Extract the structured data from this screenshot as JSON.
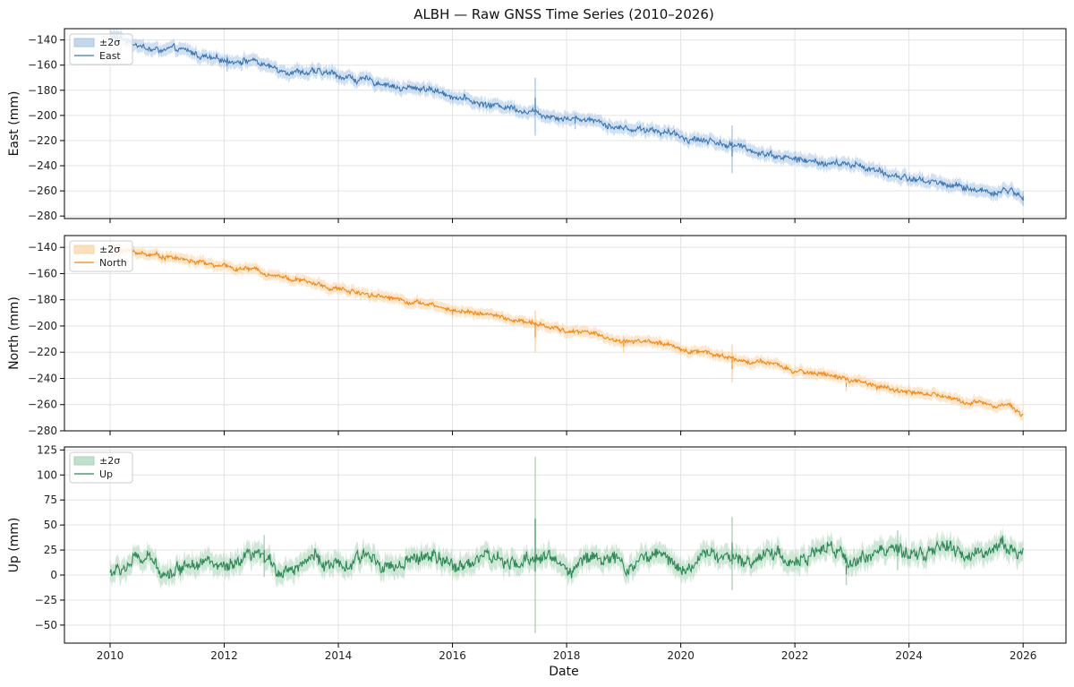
{
  "chart_data": {
    "type": "line",
    "title": "ALBH — Raw GNSS Time Series (2010–2026)",
    "xlabel": "Date",
    "xlim": [
      2009.2,
      2026.75
    ],
    "xticks": [
      "2010",
      "2012",
      "2014",
      "2016",
      "2018",
      "2020",
      "2022",
      "2024",
      "2026"
    ],
    "xtick_values": [
      2010,
      2012,
      2014,
      2016,
      2018,
      2020,
      2022,
      2024,
      2026
    ],
    "grid": true,
    "panels": [
      {
        "ylabel": "East (mm)",
        "ylim": [
          -282,
          -131
        ],
        "yticks": [
          -140,
          -160,
          -180,
          -200,
          -220,
          -240,
          -260,
          -280
        ],
        "color": "#3a78b5",
        "band_color": "#a9c6e6",
        "legend": {
          "placement": "top-left",
          "entries": [
            "±2σ",
            "East"
          ]
        },
        "sigma2": 5,
        "noise": 2.2,
        "points": [
          [
            2010.0,
            -137
          ],
          [
            2010.5,
            -143
          ],
          [
            2010.7,
            -148
          ],
          [
            2011.2,
            -148
          ],
          [
            2011.5,
            -151
          ],
          [
            2011.8,
            -156
          ],
          [
            2012.5,
            -156
          ],
          [
            2012.8,
            -162
          ],
          [
            2013.3,
            -165
          ],
          [
            2013.9,
            -167
          ],
          [
            2014.4,
            -172
          ],
          [
            2014.9,
            -175
          ],
          [
            2015.1,
            -179
          ],
          [
            2015.5,
            -178
          ],
          [
            2016.0,
            -184
          ],
          [
            2016.5,
            -191
          ],
          [
            2017.0,
            -193
          ],
          [
            2017.5,
            -198
          ],
          [
            2018.0,
            -202
          ],
          [
            2018.5,
            -203
          ],
          [
            2018.9,
            -210
          ],
          [
            2019.5,
            -211
          ],
          [
            2020.0,
            -217
          ],
          [
            2020.5,
            -220
          ],
          [
            2020.9,
            -224
          ],
          [
            2021.5,
            -230
          ],
          [
            2022.0,
            -235
          ],
          [
            2022.5,
            -238
          ],
          [
            2023.2,
            -240
          ],
          [
            2023.5,
            -246
          ],
          [
            2024.0,
            -250
          ],
          [
            2024.6,
            -254
          ],
          [
            2025.0,
            -258
          ],
          [
            2025.5,
            -261
          ],
          [
            2025.8,
            -259
          ],
          [
            2026.0,
            -267
          ]
        ],
        "spikes": [
          [
            2017.45,
            -170,
            -216
          ],
          [
            2018.15,
            -198,
            -211
          ],
          [
            2020.9,
            -208,
            -246
          ],
          [
            2012.05,
            -152,
            -165
          ],
          [
            2026.0,
            -260,
            -272
          ]
        ]
      },
      {
        "ylabel": "North (mm)",
        "ylim": [
          -280,
          -131
        ],
        "yticks": [
          -140,
          -160,
          -180,
          -200,
          -220,
          -240,
          -260,
          -280
        ],
        "color": "#f5870f",
        "band_color": "#fcd3a3",
        "legend": {
          "placement": "top-left",
          "entries": [
            "±2σ",
            "North"
          ]
        },
        "sigma2": 4,
        "noise": 1.5,
        "points": [
          [
            2010.0,
            -140
          ],
          [
            2010.5,
            -144
          ],
          [
            2011.0,
            -147
          ],
          [
            2011.5,
            -151
          ],
          [
            2012.0,
            -155
          ],
          [
            2012.5,
            -157
          ],
          [
            2013.0,
            -162
          ],
          [
            2013.5,
            -167
          ],
          [
            2014.0,
            -172
          ],
          [
            2014.5,
            -175
          ],
          [
            2015.0,
            -179
          ],
          [
            2015.5,
            -183
          ],
          [
            2016.0,
            -188
          ],
          [
            2016.5,
            -190
          ],
          [
            2017.0,
            -195
          ],
          [
            2017.5,
            -199
          ],
          [
            2018.0,
            -204
          ],
          [
            2018.5,
            -205
          ],
          [
            2018.8,
            -211
          ],
          [
            2019.5,
            -212
          ],
          [
            2020.0,
            -218
          ],
          [
            2020.5,
            -220
          ],
          [
            2021.0,
            -226
          ],
          [
            2021.5,
            -228
          ],
          [
            2022.0,
            -235
          ],
          [
            2022.5,
            -236
          ],
          [
            2023.0,
            -242
          ],
          [
            2023.5,
            -247
          ],
          [
            2024.0,
            -250
          ],
          [
            2024.5,
            -253
          ],
          [
            2025.0,
            -258
          ],
          [
            2025.5,
            -259
          ],
          [
            2025.8,
            -261
          ],
          [
            2026.0,
            -268
          ]
        ],
        "spikes": [
          [
            2017.45,
            -188,
            -220
          ],
          [
            2019.0,
            -208,
            -220
          ],
          [
            2020.9,
            -214,
            -243
          ],
          [
            2022.9,
            -240,
            -250
          ],
          [
            2016.0,
            -186,
            -194
          ]
        ]
      },
      {
        "ylabel": "Up (mm)",
        "ylim": [
          -68,
          128
        ],
        "yticks": [
          125,
          100,
          75,
          50,
          25,
          0,
          -25,
          -50
        ],
        "color": "#2e8b57",
        "band_color": "#a7d3b7",
        "legend": {
          "placement": "top-left",
          "entries": [
            "±2σ",
            "Up"
          ]
        },
        "sigma2": 10,
        "noise": 6,
        "seasonal_amplitude": 6,
        "points": [
          [
            2010.0,
            9
          ],
          [
            2012.0,
            11
          ],
          [
            2014.0,
            12
          ],
          [
            2016.0,
            14
          ],
          [
            2018.0,
            14
          ],
          [
            2020.0,
            15
          ],
          [
            2022.0,
            19
          ],
          [
            2024.0,
            22
          ],
          [
            2026.0,
            25
          ]
        ],
        "spikes": [
          [
            2017.45,
            118,
            -58
          ],
          [
            2020.9,
            58,
            -15
          ],
          [
            2022.9,
            20,
            -10
          ],
          [
            2023.8,
            45,
            5
          ],
          [
            2012.7,
            40,
            -2
          ]
        ]
      }
    ]
  }
}
